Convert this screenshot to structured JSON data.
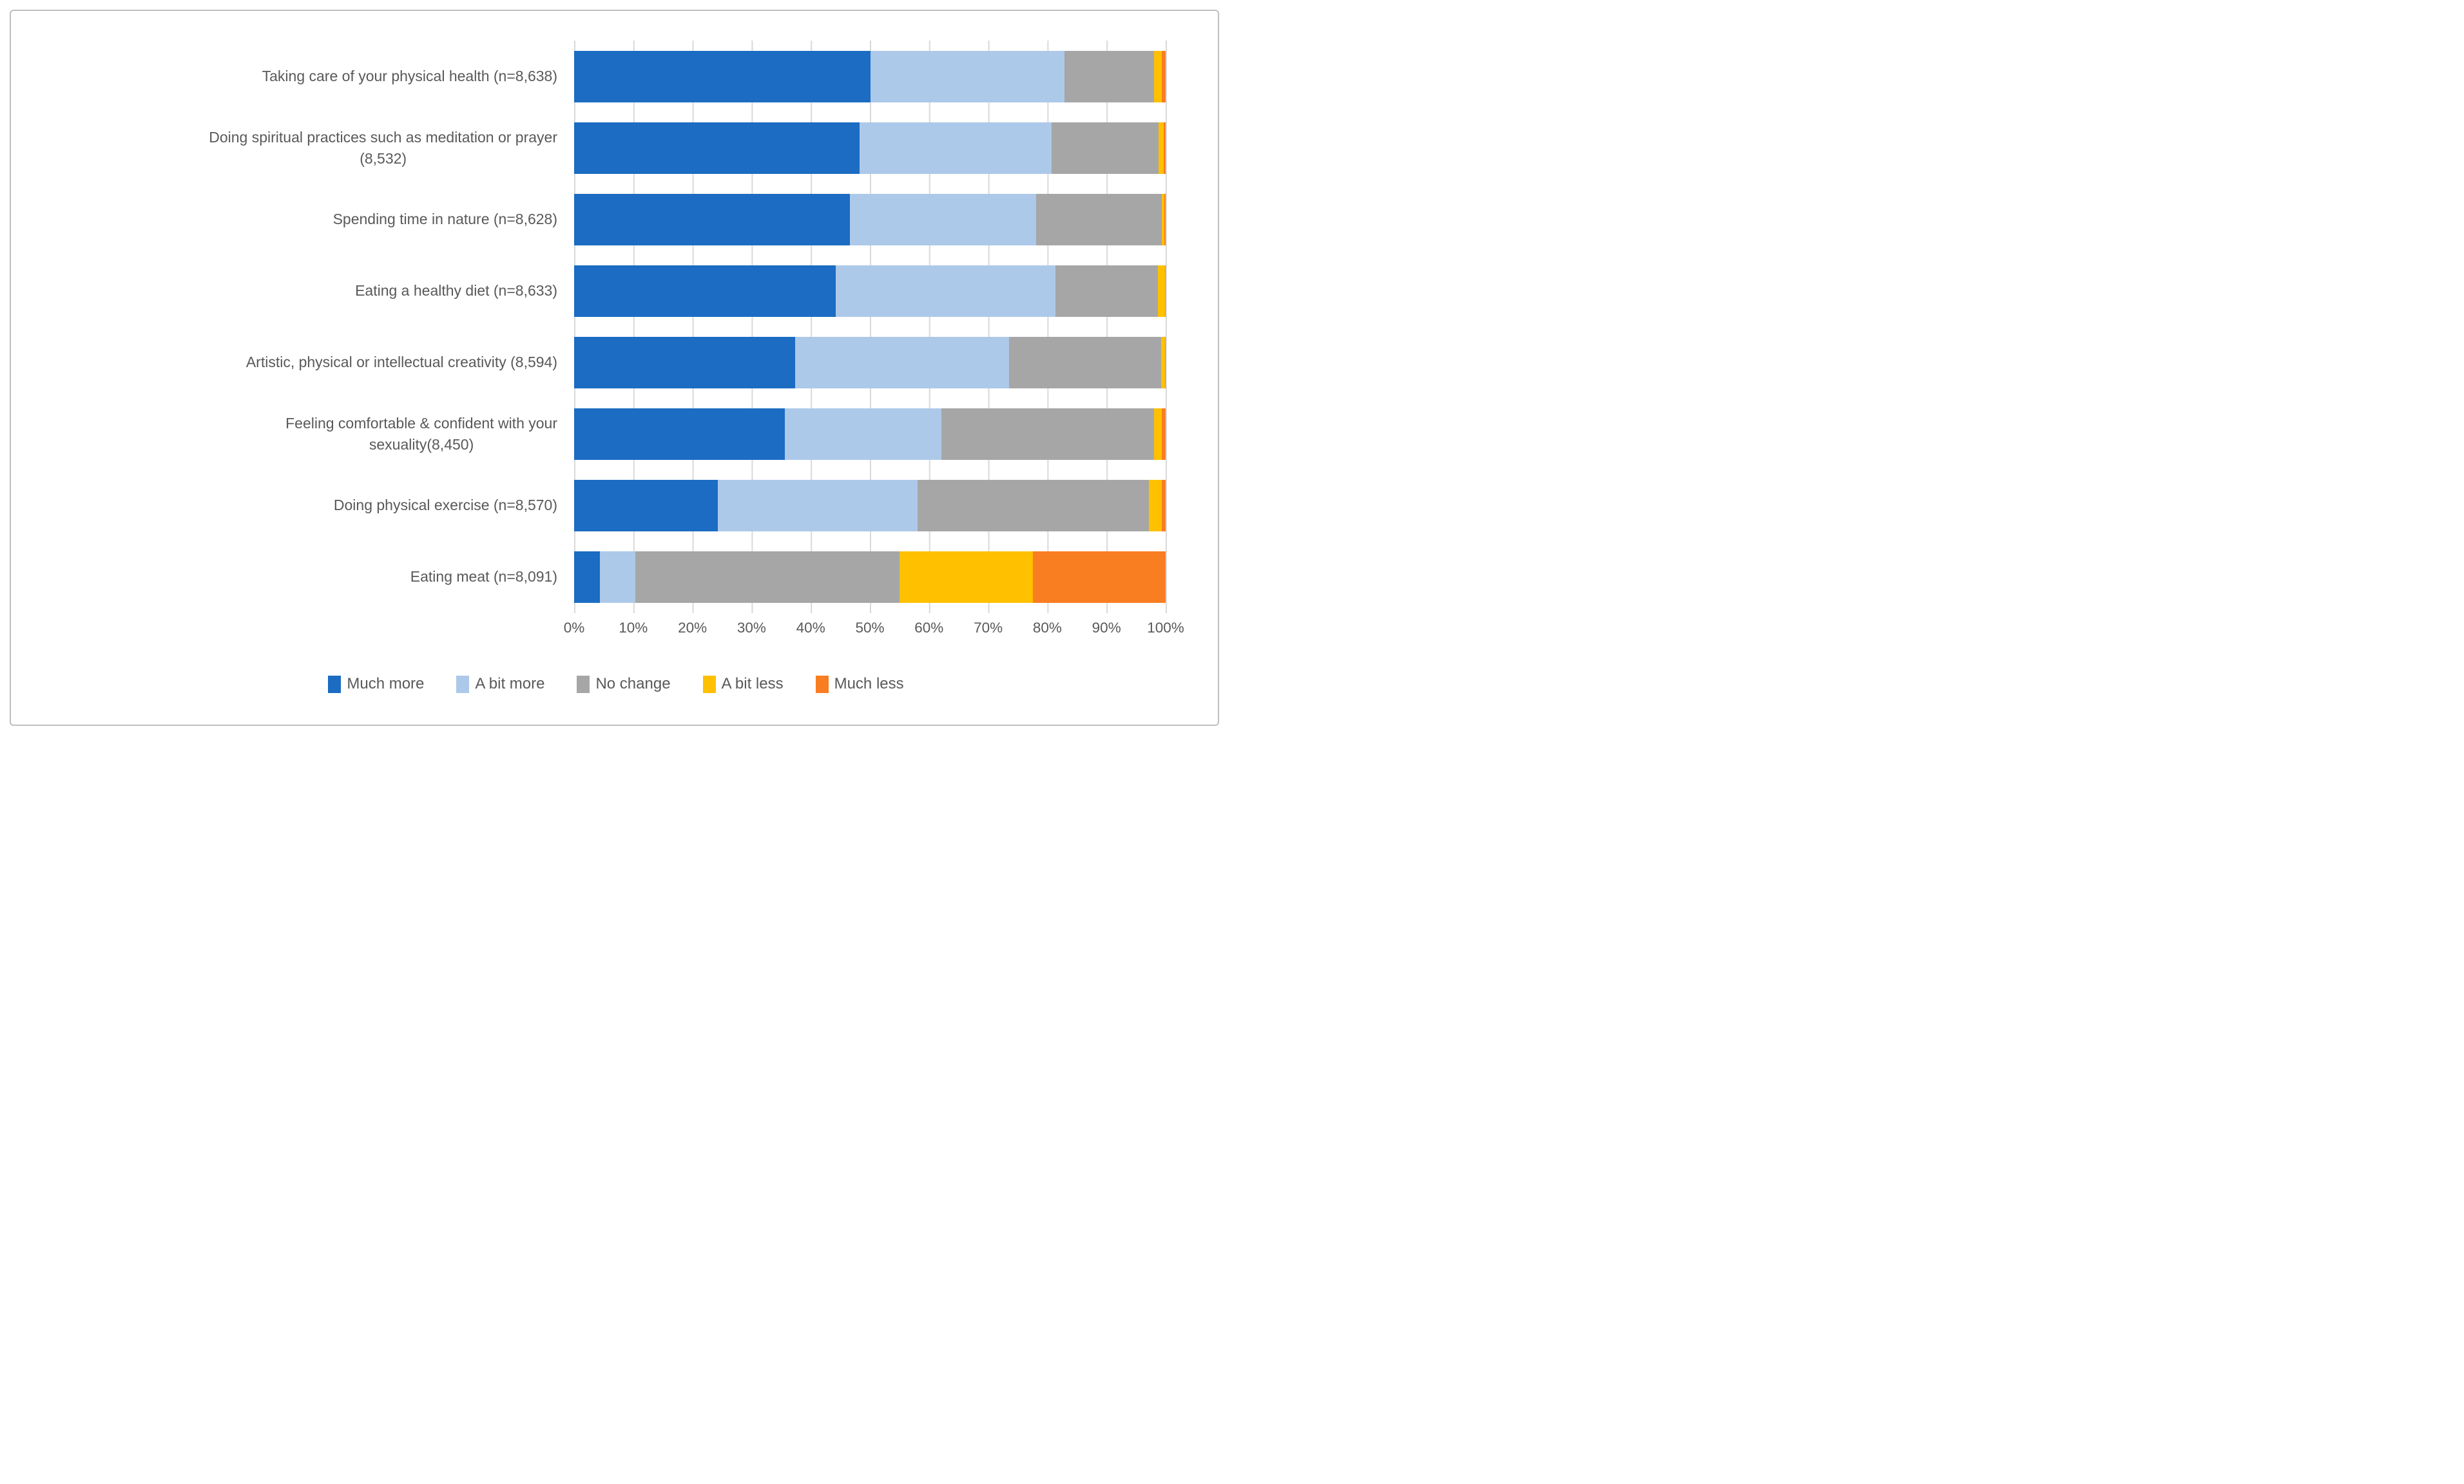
{
  "figure": {
    "background": "#FFFFFF",
    "border_color": "#BFBFBF",
    "gridline_color": "#D9D9D9",
    "text_color": "#595959"
  },
  "chart_data": {
    "type": "bar",
    "orientation": "horizontal",
    "stacked": true,
    "title": "",
    "xlabel": "",
    "ylabel": "",
    "xlim": [
      0,
      100
    ],
    "grid": "vertical",
    "legend_position": "bottom",
    "categories": [
      "Taking care of your physical health (n=8,638)",
      "Doing spiritual practices such as meditation or prayer\n(8,532)",
      "Spending time in nature (n=8,628)",
      "Eating a healthy diet (n=8,633)",
      "Artistic, physical or intellectual creativity (8,594)",
      "Feeling comfortable & confident with your\nsexuality(8,450)",
      "Doing physical exercise (n=8,570)",
      "Eating meat (n=8,091)"
    ],
    "series": [
      {
        "name": "Much more",
        "color": "#1B6CC2",
        "values": [
          50.1,
          48.3,
          46.6,
          44.2,
          37.4,
          35.6,
          24.3,
          4.4
        ]
      },
      {
        "name": "A bit more",
        "color": "#ADC9E9",
        "values": [
          32.8,
          32.4,
          31.5,
          37.2,
          36.1,
          26.5,
          33.8,
          5.9
        ]
      },
      {
        "name": "No change",
        "color": "#A6A6A6",
        "values": [
          15.1,
          18.1,
          21.2,
          17.3,
          25.7,
          35.9,
          39.1,
          44.7
        ]
      },
      {
        "name": "A bit less",
        "color": "#FFC000",
        "values": [
          1.3,
          0.9,
          0.5,
          1.2,
          0.7,
          1.3,
          2.2,
          22.6
        ]
      },
      {
        "name": "Much less",
        "color": "#F97D21",
        "values": [
          0.7,
          0.3,
          0.2,
          0.1,
          0.1,
          0.7,
          0.6,
          22.4
        ]
      }
    ],
    "x_ticks": [
      "0%",
      "10%",
      "20%",
      "30%",
      "40%",
      "50%",
      "60%",
      "70%",
      "80%",
      "90%",
      "100%"
    ]
  }
}
